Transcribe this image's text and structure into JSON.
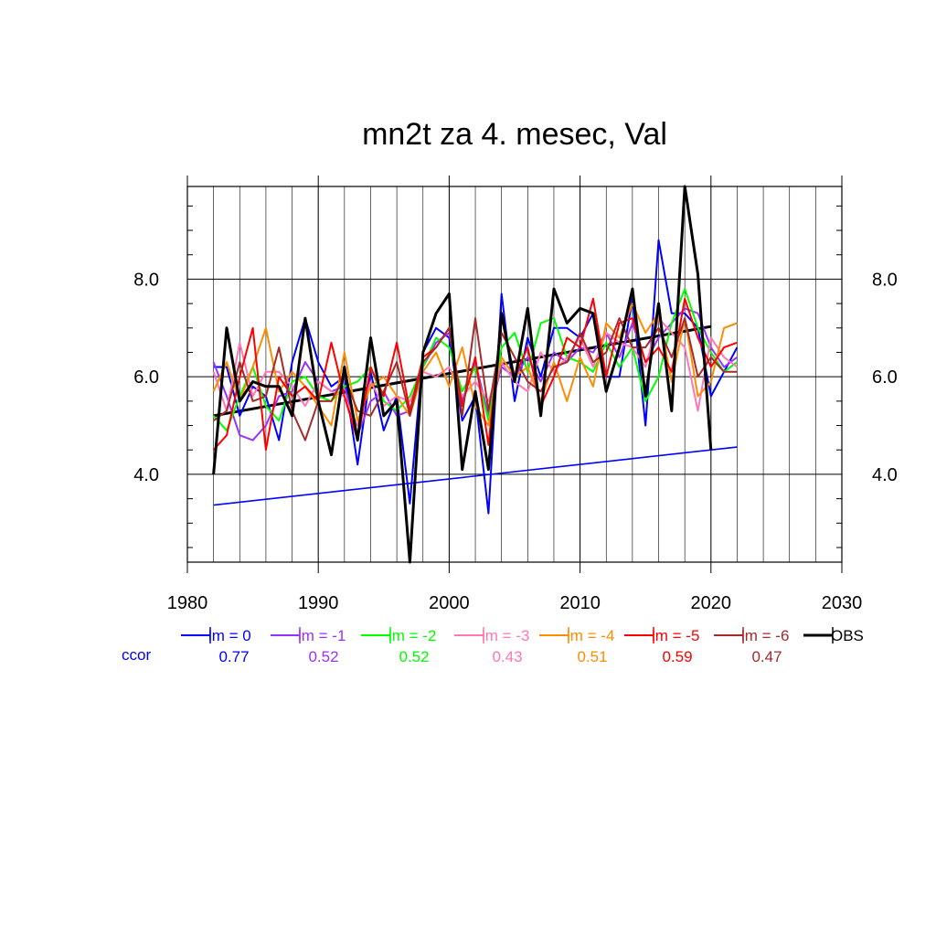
{
  "chart_data": {
    "type": "line",
    "title": "mn2t za 4. mesec, Val",
    "xlim": [
      1980,
      2030
    ],
    "ylim": [
      2.2,
      9.9
    ],
    "x_ticks": [
      "1980",
      "1990",
      "2000",
      "2010",
      "2020",
      "2030"
    ],
    "y_ticks": [
      "4.0",
      "6.0",
      "8.0"
    ],
    "grid": true,
    "legend_position": "bottom",
    "ccor_label": "ccor",
    "series": [
      {
        "name": "lm = 0",
        "color": "#0000ff",
        "ccor": "0.77",
        "x": [
          1982,
          1983,
          1984,
          1985,
          1986,
          1987,
          1988,
          1989,
          1990,
          1991,
          1992,
          1993,
          1994,
          1995,
          1996,
          1997,
          1998,
          1999,
          2000,
          2001,
          2002,
          2003,
          2004,
          2005,
          2006,
          2007,
          2008,
          2009,
          2010,
          2011,
          2012,
          2013,
          2014,
          2015,
          2016,
          2017,
          2018,
          2019,
          2020,
          2021,
          2022
        ],
        "y": [
          6.2,
          6.2,
          5.2,
          5.8,
          5.6,
          4.7,
          6.3,
          7.2,
          6.3,
          5.8,
          6.0,
          4.2,
          6.1,
          4.9,
          5.6,
          3.4,
          6.5,
          7.0,
          6.8,
          5.1,
          5.6,
          3.2,
          7.7,
          5.5,
          6.8,
          6.0,
          7.0,
          7.0,
          6.8,
          7.3,
          6.0,
          6.0,
          7.6,
          5.0,
          8.8,
          7.3,
          7.3,
          7.0,
          5.6,
          6.1,
          6.6
        ]
      },
      {
        "name": "lm = -1",
        "color": "#9a32ff",
        "ccor": "0.52",
        "x": [
          1982,
          1983,
          1984,
          1985,
          1986,
          1987,
          1988,
          1989,
          1990,
          1991,
          1992,
          1993,
          1994,
          1995,
          1996,
          1997,
          1998,
          1999,
          2000,
          2001,
          2002,
          2003,
          2004,
          2005,
          2006,
          2007,
          2008,
          2009,
          2010,
          2011,
          2012,
          2013,
          2014,
          2015,
          2016,
          2017,
          2018,
          2019,
          2020,
          2021,
          2022
        ],
        "y": [
          6.3,
          5.6,
          4.8,
          4.7,
          5.0,
          5.6,
          5.7,
          6.3,
          5.9,
          5.7,
          5.8,
          4.8,
          5.5,
          5.7,
          5.2,
          5.3,
          6.2,
          6.7,
          6.9,
          5.5,
          6.3,
          5.2,
          6.2,
          6.0,
          6.4,
          5.9,
          6.5,
          6.3,
          6.6,
          6.5,
          6.9,
          6.4,
          7.1,
          6.3,
          6.8,
          7.1,
          7.4,
          7.3,
          6.6,
          6.2,
          6.4
        ]
      },
      {
        "name": "lm = -2",
        "color": "#00ff00",
        "ccor": "0.52",
        "x": [
          1982,
          1983,
          1984,
          1985,
          1986,
          1987,
          1988,
          1989,
          1990,
          1991,
          1992,
          1993,
          1994,
          1995,
          1996,
          1997,
          1998,
          1999,
          2000,
          2001,
          2002,
          2003,
          2004,
          2005,
          2006,
          2007,
          2008,
          2009,
          2010,
          2011,
          2012,
          2013,
          2014,
          2015,
          2016,
          2017,
          2018,
          2019,
          2020,
          2021,
          2022
        ],
        "y": [
          5.2,
          4.9,
          5.6,
          6.2,
          5.4,
          5.1,
          5.9,
          6.0,
          5.6,
          5.5,
          5.8,
          5.9,
          6.2,
          5.5,
          5.3,
          5.6,
          6.2,
          6.8,
          6.6,
          5.7,
          6.2,
          5.1,
          6.6,
          6.9,
          6.1,
          7.1,
          7.2,
          6.4,
          6.3,
          6.1,
          6.7,
          6.2,
          6.6,
          5.5,
          6.0,
          7.1,
          7.8,
          7.0,
          6.5,
          6.1,
          6.3
        ]
      },
      {
        "name": "lm = -3",
        "color": "#ff77b4",
        "ccor": "0.43",
        "x": [
          1982,
          1983,
          1984,
          1985,
          1986,
          1987,
          1988,
          1989,
          1990,
          1991,
          1992,
          1993,
          1994,
          1995,
          1996,
          1997,
          1998,
          1999,
          2000,
          2001,
          2002,
          2003,
          2004,
          2005,
          2006,
          2007,
          2008,
          2009,
          2010,
          2011,
          2012,
          2013,
          2014,
          2015,
          2016,
          2017,
          2018,
          2019,
          2020,
          2021,
          2022
        ],
        "y": [
          6.1,
          5.3,
          6.7,
          5.6,
          6.1,
          6.1,
          5.8,
          5.4,
          5.9,
          5.7,
          5.6,
          5.0,
          5.9,
          5.4,
          5.6,
          5.5,
          6.1,
          6.0,
          6.2,
          5.6,
          5.9,
          5.5,
          6.3,
          5.9,
          5.7,
          6.5,
          6.1,
          6.4,
          6.8,
          6.2,
          6.9,
          6.7,
          6.6,
          6.2,
          7.2,
          6.9,
          6.6,
          5.3,
          6.8,
          6.4,
          6.2
        ]
      },
      {
        "name": "lm = -4",
        "color": "#ff8c00",
        "ccor": "0.51",
        "x": [
          1982,
          1983,
          1984,
          1985,
          1986,
          1987,
          1988,
          1989,
          1990,
          1991,
          1992,
          1993,
          1994,
          1995,
          1996,
          1997,
          1998,
          1999,
          2000,
          2001,
          2002,
          2003,
          2004,
          2005,
          2006,
          2007,
          2008,
          2009,
          2010,
          2011,
          2012,
          2013,
          2014,
          2015,
          2016,
          2017,
          2018,
          2019,
          2020,
          2021,
          2022
        ],
        "y": [
          5.7,
          6.3,
          5.5,
          6.2,
          7.0,
          5.7,
          6.1,
          5.8,
          5.4,
          5.0,
          6.5,
          5.1,
          5.8,
          6.0,
          5.6,
          5.2,
          6.1,
          6.5,
          5.8,
          6.6,
          5.4,
          5.0,
          6.4,
          6.0,
          6.2,
          5.5,
          6.3,
          5.5,
          6.4,
          5.8,
          7.1,
          6.8,
          7.5,
          6.9,
          7.3,
          5.9,
          7.2,
          5.6,
          5.9,
          7.0,
          7.1
        ]
      },
      {
        "name": "lm = -5",
        "color": "#ff0000",
        "ccor": "0.59",
        "x": [
          1982,
          1983,
          1984,
          1985,
          1986,
          1987,
          1988,
          1989,
          1990,
          1991,
          1992,
          1993,
          1994,
          1995,
          1996,
          1997,
          1998,
          1999,
          2000,
          2001,
          2002,
          2003,
          2004,
          2005,
          2006,
          2007,
          2008,
          2009,
          2010,
          2011,
          2012,
          2013,
          2014,
          2015,
          2016,
          2017,
          2018,
          2019,
          2020,
          2021,
          2022
        ],
        "y": [
          4.5,
          4.8,
          6.0,
          7.0,
          4.5,
          6.0,
          5.6,
          5.8,
          5.5,
          6.7,
          5.6,
          4.7,
          6.2,
          5.6,
          6.7,
          5.3,
          6.4,
          6.6,
          7.0,
          5.4,
          6.4,
          4.6,
          7.2,
          6.0,
          6.6,
          5.4,
          6.0,
          6.8,
          6.6,
          7.6,
          6.0,
          7.1,
          7.2,
          6.3,
          6.6,
          6.1,
          7.6,
          6.8,
          6.2,
          6.6,
          6.7
        ]
      },
      {
        "name": "lm = -6",
        "color": "#a52a2a",
        "ccor": "0.47",
        "x": [
          1982,
          1983,
          1984,
          1985,
          1986,
          1987,
          1988,
          1989,
          1990,
          1991,
          1992,
          1993,
          1994,
          1995,
          1996,
          1997,
          1998,
          1999,
          2000,
          2001,
          2002,
          2003,
          2004,
          2005,
          2006,
          2007,
          2008,
          2009,
          2010,
          2011,
          2012,
          2013,
          2014,
          2015,
          2016,
          2017,
          2018,
          2019,
          2020,
          2021,
          2022
        ],
        "y": [
          5.1,
          5.3,
          6.3,
          5.5,
          5.6,
          6.6,
          5.3,
          4.7,
          5.5,
          5.5,
          6.0,
          5.3,
          5.2,
          5.7,
          6.3,
          5.2,
          6.3,
          6.6,
          7.0,
          5.2,
          7.2,
          5.3,
          6.9,
          6.4,
          5.9,
          5.7,
          6.2,
          6.3,
          6.9,
          6.3,
          6.5,
          7.2,
          6.6,
          6.6,
          7.0,
          6.4,
          7.2,
          6.0,
          6.4,
          6.1,
          6.1
        ]
      },
      {
        "name": "OBS",
        "color": "#000000",
        "ccor": "",
        "x": [
          1982,
          1983,
          1984,
          1985,
          1986,
          1987,
          1988,
          1989,
          1990,
          1991,
          1992,
          1993,
          1994,
          1995,
          1996,
          1997,
          1998,
          1999,
          2000,
          2001,
          2002,
          2003,
          2004,
          2005,
          2006,
          2007,
          2008,
          2009,
          2010,
          2011,
          2012,
          2013,
          2014,
          2015,
          2016,
          2017,
          2018,
          2019,
          2020
        ],
        "y": [
          4.0,
          7.0,
          5.5,
          5.9,
          5.8,
          5.8,
          5.2,
          7.2,
          5.5,
          4.4,
          6.2,
          4.7,
          6.8,
          5.2,
          5.5,
          2.2,
          6.5,
          7.3,
          7.7,
          4.1,
          5.7,
          4.1,
          7.3,
          5.9,
          7.4,
          5.2,
          7.8,
          7.1,
          7.4,
          7.3,
          5.7,
          6.6,
          7.8,
          5.6,
          7.5,
          5.3,
          9.9,
          8.1,
          4.5
        ]
      }
    ],
    "trend_lines": [
      {
        "color": "#0000ff",
        "x": [
          1982,
          2022
        ],
        "y": [
          3.37,
          4.56
        ]
      },
      {
        "color": "#000000",
        "x": [
          1982,
          2020
        ],
        "y": [
          5.2,
          7.03
        ]
      }
    ]
  }
}
